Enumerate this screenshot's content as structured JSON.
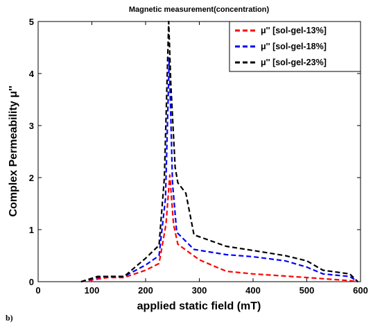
{
  "chart_data": {
    "type": "line",
    "title": "Magnetic measurement(concentration)",
    "xlabel": "applied static field (mT)",
    "ylabel": "Complex Permeability  μ''",
    "panel_label": "b)",
    "xlim": [
      0,
      600
    ],
    "ylim": [
      0,
      5
    ],
    "xticks": [
      0,
      100,
      200,
      300,
      400,
      500,
      600
    ],
    "yticks": [
      0,
      1,
      2,
      3,
      4,
      5
    ],
    "grid": false,
    "legend_position": "top-right",
    "series": [
      {
        "name": "μ'' [sol-gel-13%]",
        "color": "#ff0000",
        "x": [
          80,
          110,
          130,
          160,
          200,
          225,
          238,
          245,
          252,
          260,
          300,
          350,
          400,
          500,
          580,
          595
        ],
        "y": [
          0,
          0.05,
          0.08,
          0.08,
          0.22,
          0.35,
          1.1,
          2.05,
          1.1,
          0.72,
          0.42,
          0.2,
          0.15,
          0.08,
          0.02,
          0
        ]
      },
      {
        "name": "μ'' [sol-gel-18%]",
        "color": "#0000ff",
        "x": [
          80,
          110,
          130,
          160,
          200,
          225,
          237,
          244,
          250,
          258,
          290,
          350,
          400,
          460,
          500,
          530,
          580,
          595
        ],
        "y": [
          0,
          0.08,
          0.1,
          0.1,
          0.32,
          0.5,
          1.6,
          4.3,
          1.9,
          0.95,
          0.62,
          0.52,
          0.48,
          0.4,
          0.28,
          0.15,
          0.1,
          0
        ]
      },
      {
        "name": "μ'' [sol-gel-23%]",
        "color": "#000000",
        "x": [
          80,
          110,
          130,
          160,
          200,
          225,
          235,
          243,
          247,
          255,
          260,
          275,
          290,
          350,
          400,
          460,
          500,
          530,
          580,
          595
        ],
        "y": [
          0,
          0.1,
          0.1,
          0.1,
          0.45,
          0.7,
          2.0,
          5.0,
          3.8,
          2.2,
          1.9,
          1.7,
          0.9,
          0.68,
          0.6,
          0.5,
          0.4,
          0.22,
          0.15,
          0
        ]
      }
    ]
  }
}
